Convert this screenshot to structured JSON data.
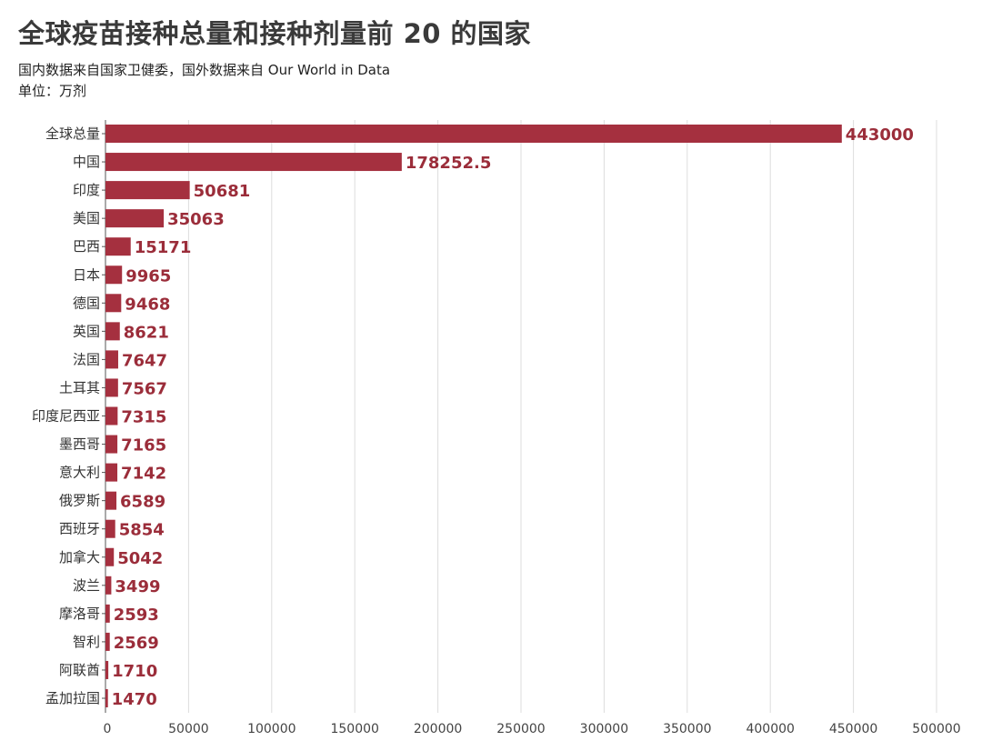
{
  "header": {
    "title": "全球疫苗接种总量和接种剂量前 20 的国家",
    "subtitle": "国内数据来自国家卫健委，国外数据来自 Our World in Data",
    "unit": "单位：万剂"
  },
  "chart_data": {
    "type": "bar",
    "orientation": "horizontal",
    "categories": [
      "全球总量",
      "中国",
      "印度",
      "美国",
      "巴西",
      "日本",
      "德国",
      "英国",
      "法国",
      "土耳其",
      "印度尼西亚",
      "墨西哥",
      "意大利",
      "俄罗斯",
      "西班牙",
      "加拿大",
      "波兰",
      "摩洛哥",
      "智利",
      "阿联酋",
      "孟加拉国"
    ],
    "values": [
      443000,
      178252.5,
      50681,
      35063,
      15171,
      9965,
      9468,
      8621,
      7647,
      7567,
      7315,
      7165,
      7142,
      6589,
      5854,
      5042,
      3499,
      2593,
      2569,
      1710,
      1470
    ],
    "value_labels": [
      "443000",
      "178252.5",
      "50681",
      "35063",
      "15171",
      "9965",
      "9468",
      "8621",
      "7647",
      "7567",
      "7315",
      "7165",
      "7142",
      "6589",
      "5854",
      "5042",
      "3499",
      "2593",
      "2569",
      "1710",
      "1470"
    ],
    "xlim": [
      0,
      500000
    ],
    "xticks": [
      0,
      50000,
      100000,
      150000,
      200000,
      250000,
      300000,
      350000,
      400000,
      450000,
      500000
    ],
    "xtick_labels": [
      "0",
      "50000",
      "100000",
      "150000",
      "200000",
      "250000",
      "300000",
      "350000",
      "400000",
      "450000",
      "500000"
    ],
    "grid": true,
    "colors": {
      "bar": "#a5303f",
      "value_label": "#9b2d3a",
      "grid": "#dddddd",
      "axis": "#555555"
    }
  }
}
